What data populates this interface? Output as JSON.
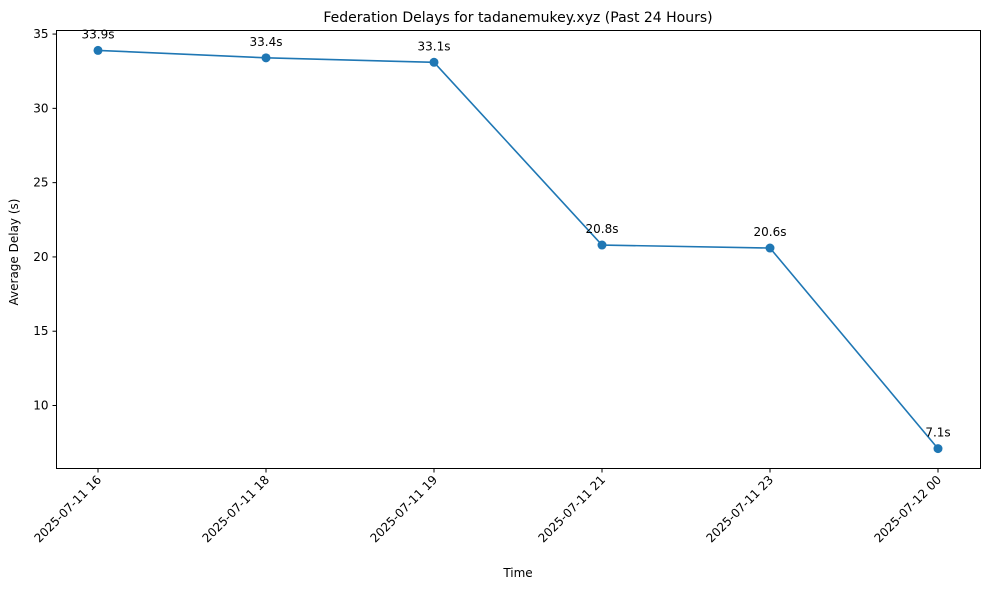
{
  "chart_data": {
    "type": "line",
    "title": "Federation Delays for tadanemukey.xyz (Past 24 Hours)",
    "xlabel": "Time",
    "ylabel": "Average Delay (s)",
    "categories": [
      "2025-07-11 16",
      "2025-07-11 18",
      "2025-07-11 19",
      "2025-07-11 21",
      "2025-07-11 23",
      "2025-07-12 00"
    ],
    "series": [
      {
        "values": [
          33.9,
          33.4,
          33.1,
          20.8,
          20.6,
          7.1
        ],
        "data_labels": [
          "33.9s",
          "33.4s",
          "33.1s",
          "20.8s",
          "20.6s",
          "7.1s"
        ],
        "color": "#1f77b4",
        "marker": "circle"
      }
    ],
    "ylim": [
      5.76,
      35.24
    ],
    "yticks": [
      10,
      15,
      20,
      25,
      30,
      35
    ],
    "grid": false,
    "legend": "none"
  }
}
